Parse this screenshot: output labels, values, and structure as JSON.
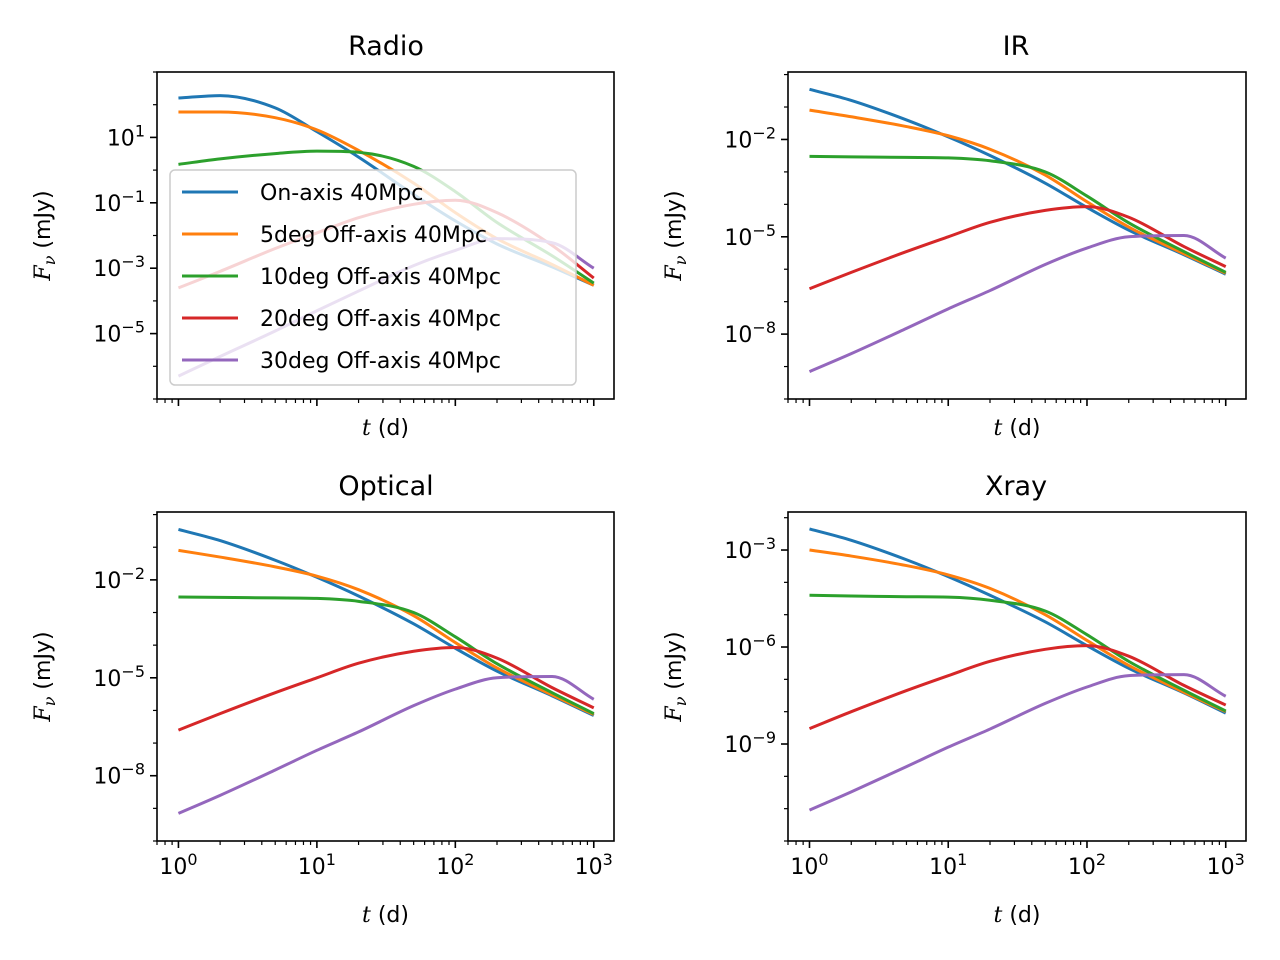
{
  "chart_data": [
    {
      "type": "line",
      "title": "Radio",
      "xlabel": "t (d)",
      "ylabel": "Fν (mJy)",
      "xscale": "log",
      "yscale": "log",
      "xlim": [
        0.7,
        1400
      ],
      "ylim": [
        1e-07,
        1000
      ],
      "xticks": [
        1,
        10,
        100,
        1000
      ],
      "xtick_labels": [
        "10^0",
        "10^1",
        "10^2",
        "10^3"
      ],
      "xtick_labels_visible": false,
      "yticks": [
        1e-05,
        0.001,
        0.1,
        10
      ],
      "ytick_labels": [
        "10^-5",
        "10^-3",
        "10^-1",
        "10^1"
      ],
      "grid": false,
      "legend": "center-left",
      "x": [
        1,
        2,
        5,
        10,
        20,
        50,
        100,
        200,
        500,
        1000
      ],
      "series": [
        {
          "name": "On-axis 40Mpc",
          "color": "#1f77b4",
          "values": [
            160,
            190,
            80,
            15,
            2.5,
            0.18,
            0.028,
            0.0055,
            0.0011,
            0.0003
          ]
        },
        {
          "name": "5deg Off-axis 40Mpc",
          "color": "#ff7f0e",
          "values": [
            60,
            60,
            40,
            17,
            4,
            0.4,
            0.05,
            0.008,
            0.0013,
            0.0003
          ]
        },
        {
          "name": "10deg Off-axis 40Mpc",
          "color": "#2ca02c",
          "values": [
            1.5,
            2.2,
            3.2,
            3.8,
            3.5,
            1.3,
            0.22,
            0.025,
            0.0024,
            0.00035
          ]
        },
        {
          "name": "20deg Off-axis 40Mpc",
          "color": "#d62728",
          "values": [
            0.00025,
            0.0008,
            0.004,
            0.012,
            0.035,
            0.09,
            0.12,
            0.05,
            0.005,
            0.0005
          ]
        },
        {
          "name": "30deg Off-axis 40Mpc",
          "color": "#9467bd",
          "values": [
            5e-07,
            2e-06,
            1.2e-05,
            5e-05,
            0.0002,
            0.0012,
            0.0035,
            0.008,
            0.006,
            0.001
          ]
        }
      ]
    },
    {
      "type": "line",
      "title": "IR",
      "xlabel": "t (d)",
      "ylabel": "Fν (mJy)",
      "xscale": "log",
      "yscale": "log",
      "xlim": [
        0.7,
        1400
      ],
      "ylim": [
        1e-10,
        1.2
      ],
      "xticks": [
        1,
        10,
        100,
        1000
      ],
      "xtick_labels": [
        "10^0",
        "10^1",
        "10^2",
        "10^3"
      ],
      "xtick_labels_visible": false,
      "yticks": [
        1e-08,
        1e-05,
        0.01
      ],
      "ytick_labels": [
        "10^-8",
        "10^-5",
        "10^-2"
      ],
      "grid": false,
      "x": [
        1,
        2,
        5,
        10,
        20,
        50,
        100,
        200,
        500,
        1000
      ],
      "series": [
        {
          "name": "On-axis 40Mpc",
          "color": "#1f77b4",
          "values": [
            0.35,
            0.16,
            0.04,
            0.012,
            0.0032,
            0.00045,
            8e-05,
            1.6e-05,
            2.8e-06,
            7e-07
          ]
        },
        {
          "name": "5deg Off-axis 40Mpc",
          "color": "#ff7f0e",
          "values": [
            0.08,
            0.05,
            0.025,
            0.013,
            0.005,
            0.0008,
            0.00012,
            2e-05,
            3e-06,
            7.5e-07
          ]
        },
        {
          "name": "10deg Off-axis 40Mpc",
          "color": "#2ca02c",
          "values": [
            0.003,
            0.0029,
            0.0028,
            0.0027,
            0.0022,
            0.001,
            0.00018,
            2.7e-05,
            3.5e-06,
            8e-07
          ]
        },
        {
          "name": "20deg Off-axis 40Mpc",
          "color": "#d62728",
          "values": [
            2.5e-07,
            8e-07,
            3.5e-06,
            1e-05,
            2.8e-05,
            6.5e-05,
            8.5e-05,
            4e-05,
            5e-06,
            1.2e-06
          ]
        },
        {
          "name": "30deg Off-axis 40Mpc",
          "color": "#9467bd",
          "values": [
            7e-10,
            2.5e-09,
            1.5e-08,
            6e-08,
            2.2e-07,
            1.4e-06,
            4.5e-06,
            1e-05,
            1.1e-05,
            2.2e-06
          ]
        }
      ]
    },
    {
      "type": "line",
      "title": "Optical",
      "xlabel": "t (d)",
      "ylabel": "Fν (mJy)",
      "xscale": "log",
      "yscale": "log",
      "xlim": [
        0.7,
        1400
      ],
      "ylim": [
        1e-10,
        1.2
      ],
      "xticks": [
        1,
        10,
        100,
        1000
      ],
      "xtick_labels": [
        "10^0",
        "10^1",
        "10^2",
        "10^3"
      ],
      "xtick_labels_visible": true,
      "yticks": [
        1e-08,
        1e-05,
        0.01
      ],
      "ytick_labels": [
        "10^-8",
        "10^-5",
        "10^-2"
      ],
      "grid": false,
      "x": [
        1,
        2,
        5,
        10,
        20,
        50,
        100,
        200,
        500,
        1000
      ],
      "series": [
        {
          "name": "On-axis 40Mpc",
          "color": "#1f77b4",
          "values": [
            0.35,
            0.16,
            0.04,
            0.012,
            0.0032,
            0.00045,
            8e-05,
            1.6e-05,
            2.8e-06,
            7e-07
          ]
        },
        {
          "name": "5deg Off-axis 40Mpc",
          "color": "#ff7f0e",
          "values": [
            0.08,
            0.05,
            0.025,
            0.013,
            0.005,
            0.0008,
            0.00012,
            2e-05,
            3e-06,
            7.5e-07
          ]
        },
        {
          "name": "10deg Off-axis 40Mpc",
          "color": "#2ca02c",
          "values": [
            0.003,
            0.0029,
            0.0028,
            0.0027,
            0.0022,
            0.001,
            0.00018,
            2.7e-05,
            3.5e-06,
            8e-07
          ]
        },
        {
          "name": "20deg Off-axis 40Mpc",
          "color": "#d62728",
          "values": [
            2.5e-07,
            8e-07,
            3.5e-06,
            1e-05,
            2.8e-05,
            6.5e-05,
            8.5e-05,
            4e-05,
            5e-06,
            1.2e-06
          ]
        },
        {
          "name": "30deg Off-axis 40Mpc",
          "color": "#9467bd",
          "values": [
            7e-10,
            2.5e-09,
            1.5e-08,
            6e-08,
            2.2e-07,
            1.4e-06,
            4.5e-06,
            1e-05,
            1.1e-05,
            2.2e-06
          ]
        }
      ]
    },
    {
      "type": "line",
      "title": "Xray",
      "xlabel": "t (d)",
      "ylabel": "Fν (mJy)",
      "xscale": "log",
      "yscale": "log",
      "xlim": [
        0.7,
        1400
      ],
      "ylim": [
        1e-12,
        0.015
      ],
      "xticks": [
        1,
        10,
        100,
        1000
      ],
      "xtick_labels": [
        "10^0",
        "10^1",
        "10^2",
        "10^3"
      ],
      "xtick_labels_visible": true,
      "yticks": [
        1e-09,
        1e-06,
        0.001
      ],
      "ytick_labels": [
        "10^-9",
        "10^-6",
        "10^-3"
      ],
      "grid": false,
      "x": [
        1,
        2,
        5,
        10,
        20,
        50,
        100,
        200,
        500,
        1000
      ],
      "series": [
        {
          "name": "On-axis 40Mpc",
          "color": "#1f77b4",
          "values": [
            0.0045,
            0.002,
            0.0005,
            0.00015,
            4e-05,
            6e-06,
            1.1e-06,
            2.2e-07,
            3.8e-08,
            9e-09
          ]
        },
        {
          "name": "5deg Off-axis 40Mpc",
          "color": "#ff7f0e",
          "values": [
            0.001,
            0.00065,
            0.00033,
            0.00017,
            6.5e-05,
            1e-05,
            1.6e-06,
            2.7e-07,
            4e-08,
            1e-08
          ]
        },
        {
          "name": "10deg Off-axis 40Mpc",
          "color": "#2ca02c",
          "values": [
            4e-05,
            3.8e-05,
            3.6e-05,
            3.5e-05,
            2.8e-05,
            1.3e-05,
            2.4e-06,
            3.6e-07,
            4.6e-08,
            1.05e-08
          ]
        },
        {
          "name": "20deg Off-axis 40Mpc",
          "color": "#d62728",
          "values": [
            3e-09,
            1e-08,
            4.5e-08,
            1.3e-07,
            3.6e-07,
            8.5e-07,
            1.1e-06,
            5.2e-07,
            6.5e-08,
            1.6e-08
          ]
        },
        {
          "name": "30deg Off-axis 40Mpc",
          "color": "#9467bd",
          "values": [
            9e-12,
            3.3e-11,
            2e-10,
            8e-10,
            2.9e-09,
            1.8e-08,
            5.8e-08,
            1.3e-07,
            1.4e-07,
            3e-08
          ]
        }
      ]
    }
  ]
}
